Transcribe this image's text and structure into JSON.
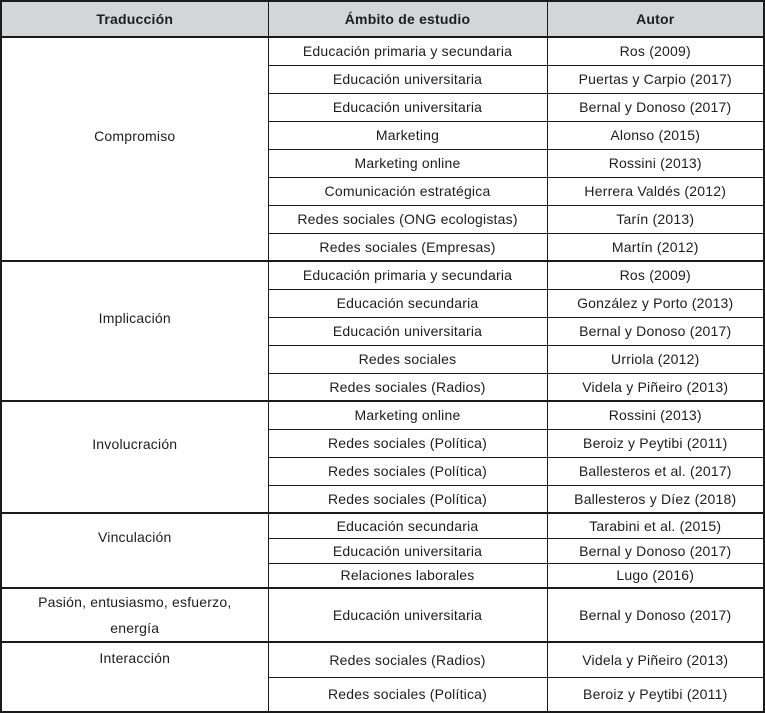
{
  "colors": {
    "header_bg": "#d4d5d7",
    "border": "#1a1a1a",
    "text": "#1d1d1d"
  },
  "table": {
    "headers": [
      "Traducción",
      "Ámbito de estudio",
      "Autor"
    ],
    "sections": [
      {
        "label": "Compromiso",
        "rows": [
          {
            "ambito": "Educación primaria y secundaria",
            "autor": "Ros (2009)"
          },
          {
            "ambito": "Educación universitaria",
            "autor": "Puertas y Carpio (2017)"
          },
          {
            "ambito": "Educación universitaria",
            "autor": "Bernal y Donoso (2017)"
          },
          {
            "ambito": "Marketing",
            "autor": "Alonso (2015)"
          },
          {
            "ambito": "Marketing online",
            "autor": "Rossini (2013)"
          },
          {
            "ambito": "Comunicación estratégica",
            "autor": "Herrera Valdés (2012)"
          },
          {
            "ambito": "Redes sociales (ONG ecologistas)",
            "autor": "Tarín (2013)"
          },
          {
            "ambito": "Redes sociales (Empresas)",
            "autor": "Martín (2012)"
          }
        ]
      },
      {
        "label": "Implicación",
        "rows": [
          {
            "ambito": "Educación primaria y secundaria",
            "autor": "Ros (2009)"
          },
          {
            "ambito": "Educación secundaria",
            "autor": "González y Porto (2013)"
          },
          {
            "ambito": "Educación universitaria",
            "autor": "Bernal y Donoso (2017)"
          },
          {
            "ambito": "Redes sociales",
            "autor": "Urriola (2012)"
          },
          {
            "ambito": "Redes sociales (Radios)",
            "autor": "Videla y Piñeiro (2013)"
          }
        ]
      },
      {
        "label": "Involucración",
        "rows": [
          {
            "ambito": "Marketing online",
            "autor": "Rossini (2013)"
          },
          {
            "ambito": "Redes sociales (Política)",
            "autor": "Beroiz y Peytibi (2011)"
          },
          {
            "ambito": "Redes sociales (Política)",
            "autor": "Ballesteros et al. (2017)"
          },
          {
            "ambito": "Redes sociales (Política)",
            "autor": "Ballesteros y Díez (2018)"
          }
        ]
      },
      {
        "label": "Vinculación",
        "rows": [
          {
            "ambito": "Educación secundaria",
            "autor": "Tarabini et al. (2015)"
          },
          {
            "ambito": "Educación universitaria",
            "autor": "Bernal y Donoso (2017)"
          },
          {
            "ambito": "Relaciones laborales",
            "autor": "Lugo (2016)"
          }
        ]
      },
      {
        "label": "Pasión, entusiasmo, esfuerzo,\nenergía",
        "rows": [
          {
            "ambito": "Educación universitaria",
            "autor": "Bernal y Donoso (2017)"
          }
        ]
      },
      {
        "label": "Interacción",
        "rows": [
          {
            "ambito": "Redes sociales (Radios)",
            "autor": "Videla y Piñeiro (2013)"
          },
          {
            "ambito": "Redes sociales (Política)",
            "autor": "Beroiz y Peytibi (2011)"
          }
        ]
      }
    ]
  }
}
